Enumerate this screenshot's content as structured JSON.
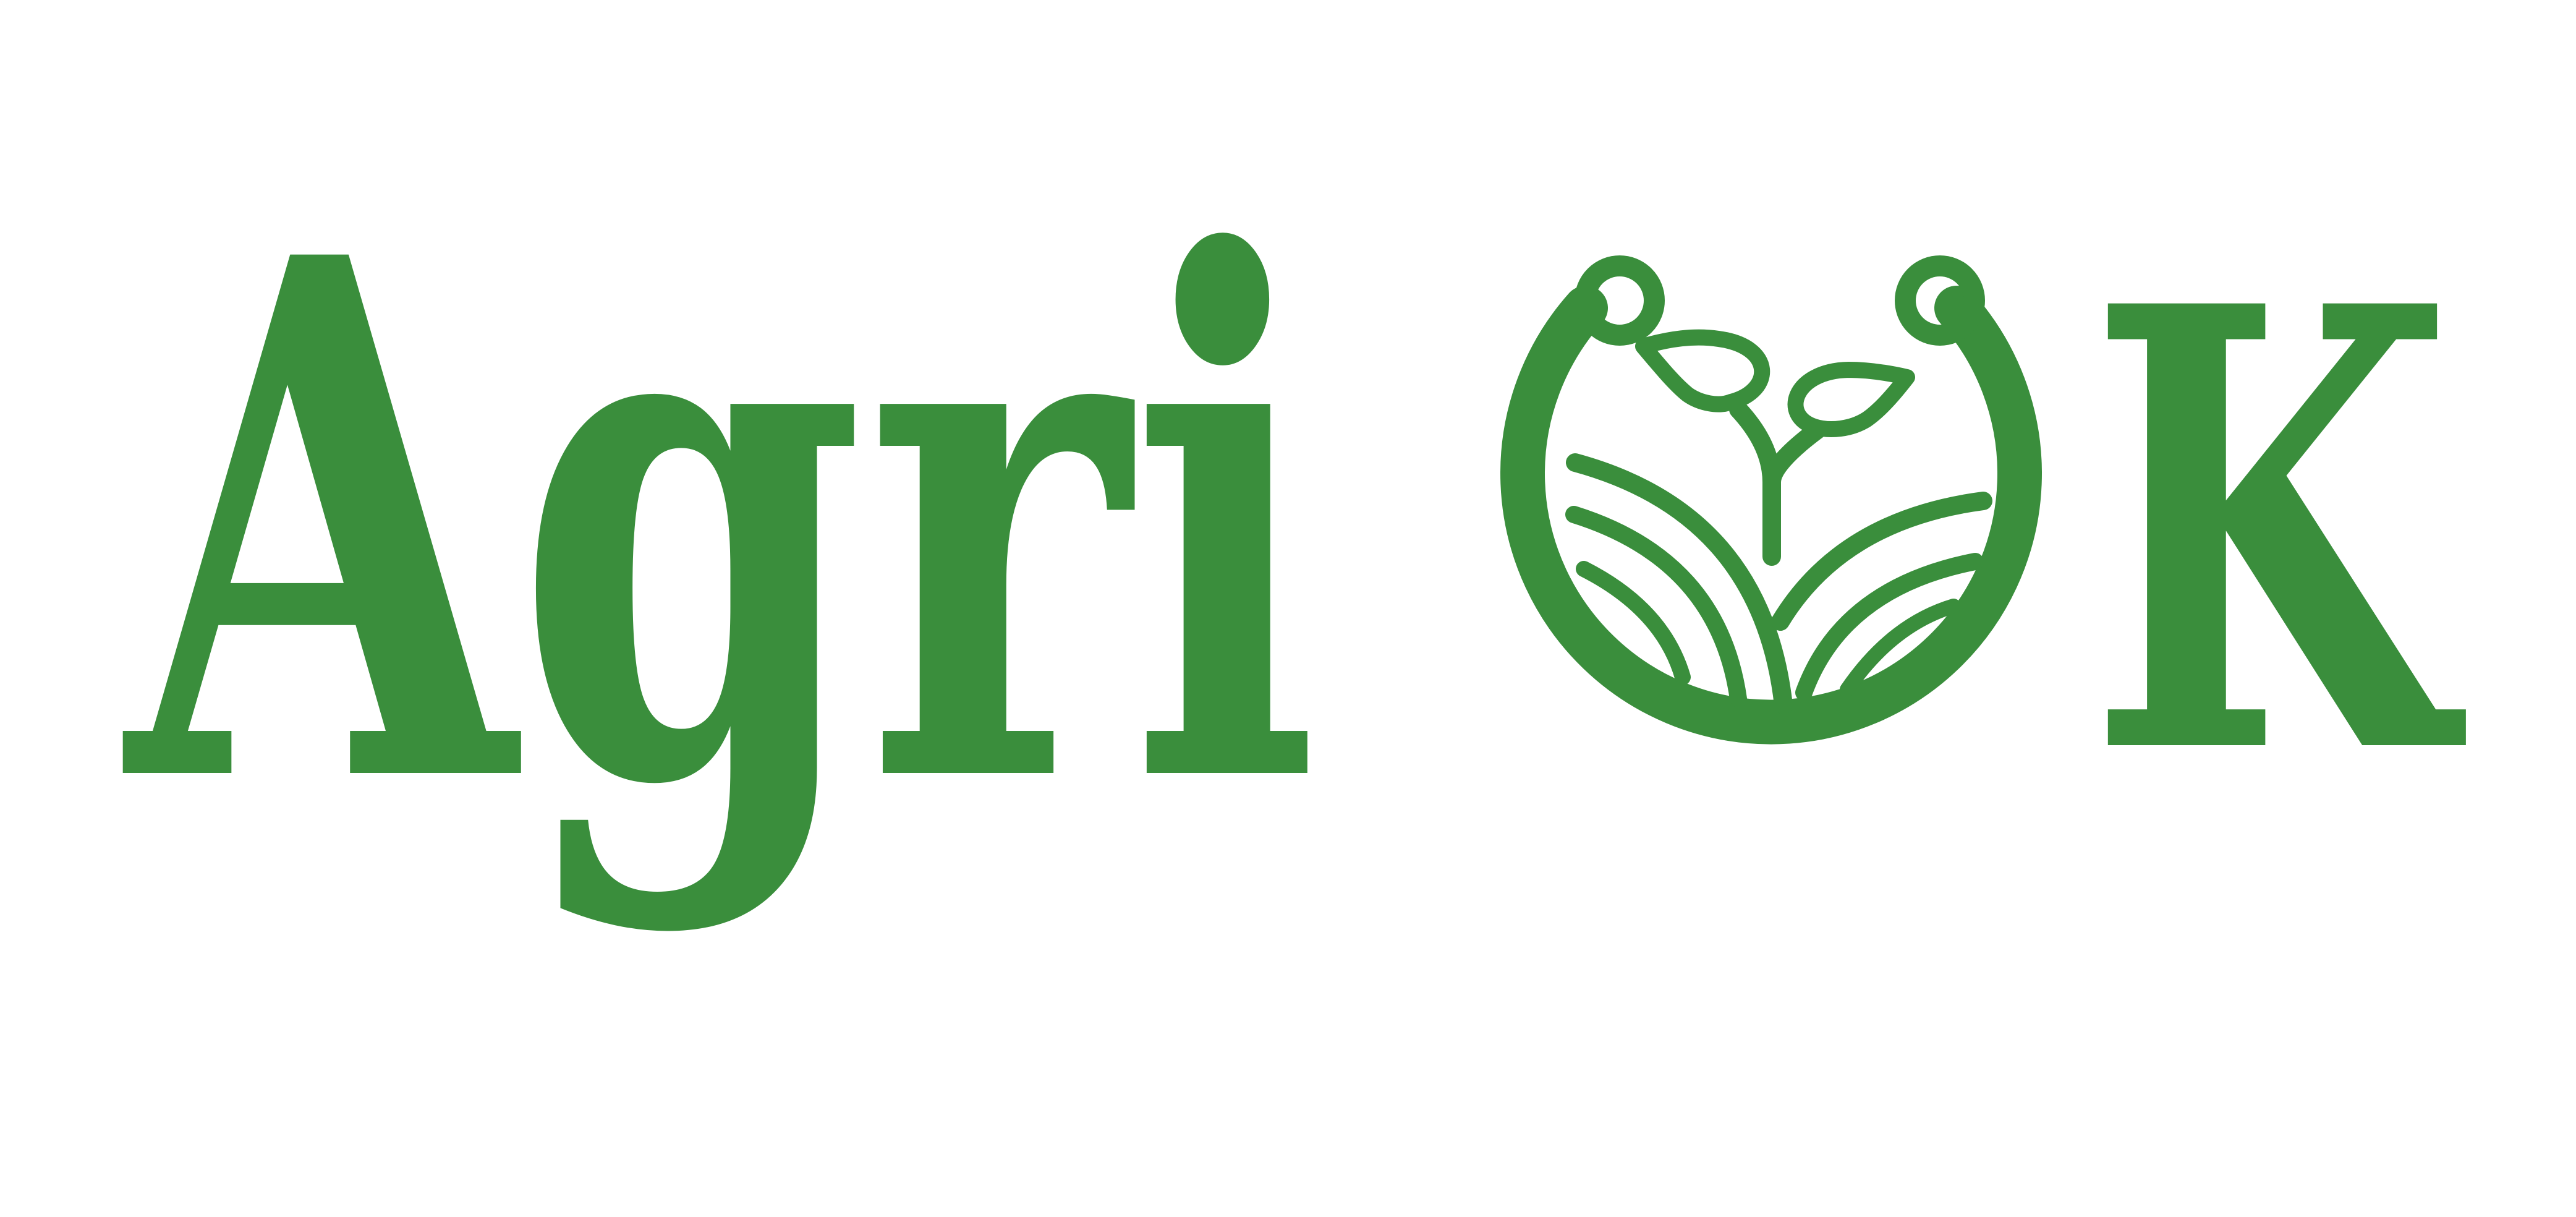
{
  "logo": {
    "text_before_emblem": "Agri",
    "text_after_emblem": "K",
    "emblem_icon": "ring-with-sprout-and-field-rows-icon",
    "colors": {
      "brand_green": "#3a8e3c",
      "background": "#ffffff"
    }
  }
}
